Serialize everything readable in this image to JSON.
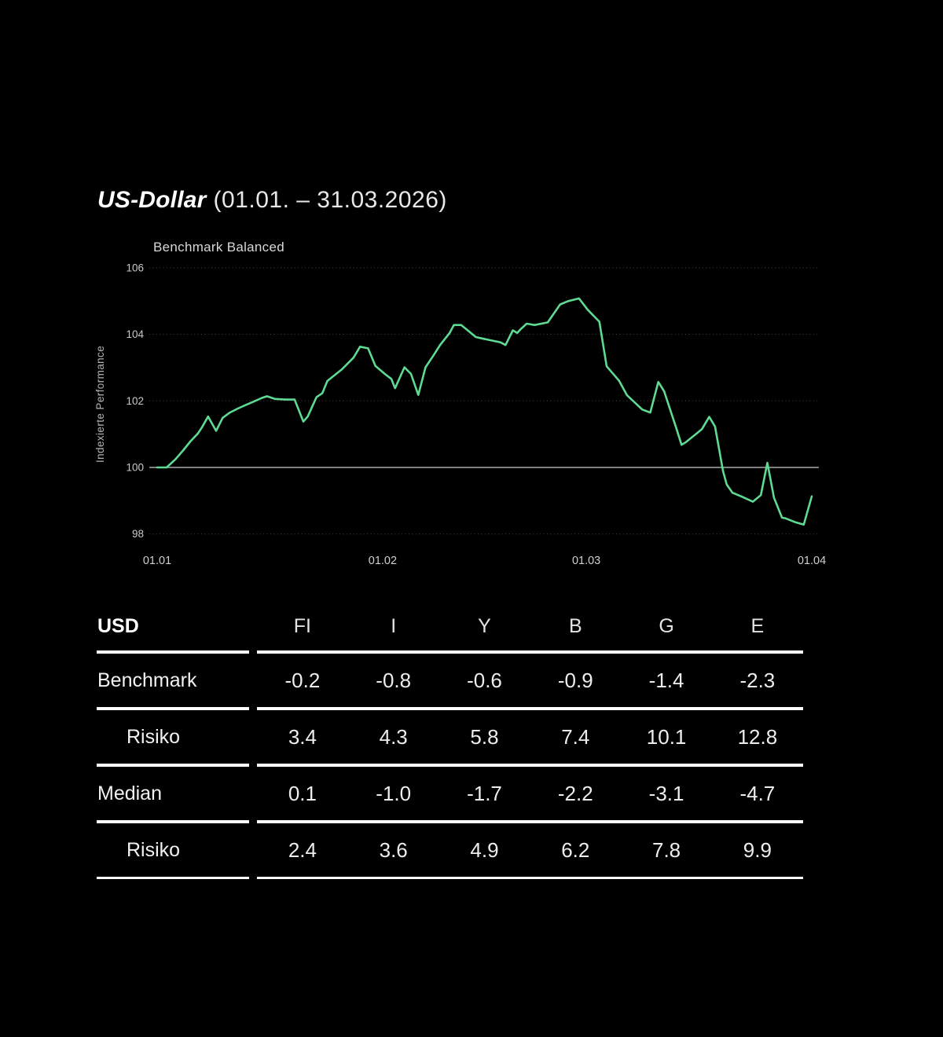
{
  "accent_color": "#5eda92",
  "background_color": "#000000",
  "header": {
    "title_main": "US-Dollar",
    "title_period": "(01.01. – 31.03.2026)"
  },
  "chart": {
    "legend": "Benchmark Balanced",
    "ylabel": "Indexierte Performance"
  },
  "chart_data": {
    "type": "line",
    "title": "US-Dollar (01.01. – 31.03.2026)",
    "series_name": "Benchmark Balanced",
    "xlabel": "",
    "ylabel": "Indexierte Performance",
    "x_unit": "days since 01.01",
    "x_ticks": [
      {
        "day": 0,
        "label": "01.01"
      },
      {
        "day": 31,
        "label": "01.02"
      },
      {
        "day": 59,
        "label": "01.03"
      },
      {
        "day": 90,
        "label": "01.04"
      }
    ],
    "y_ticks": [
      98,
      100,
      102,
      104,
      106
    ],
    "ylim": [
      97.5,
      106.3
    ],
    "baseline": 100,
    "grid": "dotted horizontal, solid line at 100",
    "legend_position": "top-left",
    "line_color": "#5eda92",
    "points": [
      [
        0.0,
        100.0
      ],
      [
        1.3,
        100.0
      ],
      [
        2.5,
        100.24
      ],
      [
        3.6,
        100.52
      ],
      [
        4.6,
        100.79
      ],
      [
        5.6,
        101.02
      ],
      [
        6.2,
        101.22
      ],
      [
        7.0,
        101.53
      ],
      [
        8.1,
        101.1
      ],
      [
        9.0,
        101.49
      ],
      [
        10.0,
        101.65
      ],
      [
        11.1,
        101.77
      ],
      [
        12.2,
        101.88
      ],
      [
        13.3,
        101.98
      ],
      [
        14.4,
        102.09
      ],
      [
        15.1,
        102.14
      ],
      [
        16.2,
        102.06
      ],
      [
        17.6,
        102.04
      ],
      [
        18.9,
        102.04
      ],
      [
        20.1,
        101.38
      ],
      [
        20.7,
        101.53
      ],
      [
        21.9,
        102.11
      ],
      [
        22.7,
        102.23
      ],
      [
        23.4,
        102.6
      ],
      [
        25.4,
        102.95
      ],
      [
        27.0,
        103.3
      ],
      [
        27.9,
        103.63
      ],
      [
        29.0,
        103.58
      ],
      [
        30.0,
        103.05
      ],
      [
        31.3,
        102.81
      ],
      [
        32.2,
        102.66
      ],
      [
        32.7,
        102.38
      ],
      [
        34.0,
        103.01
      ],
      [
        34.9,
        102.81
      ],
      [
        35.9,
        102.18
      ],
      [
        36.9,
        103.01
      ],
      [
        38.0,
        103.37
      ],
      [
        38.9,
        103.68
      ],
      [
        40.2,
        104.04
      ],
      [
        40.8,
        104.28
      ],
      [
        41.8,
        104.28
      ],
      [
        42.7,
        104.12
      ],
      [
        43.8,
        103.92
      ],
      [
        44.6,
        103.88
      ],
      [
        46.1,
        103.81
      ],
      [
        47.2,
        103.76
      ],
      [
        47.9,
        103.68
      ],
      [
        48.9,
        104.12
      ],
      [
        49.5,
        104.04
      ],
      [
        50.0,
        104.16
      ],
      [
        50.8,
        104.32
      ],
      [
        51.9,
        104.28
      ],
      [
        53.7,
        104.36
      ],
      [
        55.4,
        104.9
      ],
      [
        56.5,
        105.0
      ],
      [
        58.0,
        105.08
      ],
      [
        59.2,
        104.74
      ],
      [
        60.8,
        104.38
      ],
      [
        61.8,
        103.04
      ],
      [
        63.5,
        102.61
      ],
      [
        64.6,
        102.17
      ],
      [
        66.7,
        101.74
      ],
      [
        67.8,
        101.65
      ],
      [
        68.9,
        102.57
      ],
      [
        69.7,
        102.29
      ],
      [
        71.3,
        101.23
      ],
      [
        72.1,
        100.68
      ],
      [
        72.7,
        100.76
      ],
      [
        74.9,
        101.15
      ],
      [
        75.9,
        101.52
      ],
      [
        76.7,
        101.23
      ],
      [
        77.8,
        99.89
      ],
      [
        78.3,
        99.49
      ],
      [
        79.1,
        99.24
      ],
      [
        80.3,
        99.13
      ],
      [
        81.9,
        98.97
      ],
      [
        83.0,
        99.17
      ],
      [
        83.9,
        100.14
      ],
      [
        84.8,
        99.09
      ],
      [
        85.9,
        98.49
      ],
      [
        86.4,
        98.47
      ],
      [
        87.8,
        98.35
      ],
      [
        88.9,
        98.28
      ],
      [
        90.0,
        99.13
      ]
    ]
  },
  "table": {
    "corner": "USD",
    "columns": [
      "FI",
      "I",
      "Y",
      "B",
      "G",
      "E"
    ],
    "rows": [
      {
        "label": "Benchmark",
        "indent": false,
        "values": [
          "-0.2",
          "-0.8",
          "-0.6",
          "-0.9",
          "-1.4",
          "-2.3"
        ]
      },
      {
        "label": "Risiko",
        "indent": true,
        "values": [
          "3.4",
          "4.3",
          "5.8",
          "7.4",
          "10.1",
          "12.8"
        ]
      },
      {
        "label": "Median",
        "indent": false,
        "values": [
          "0.1",
          "-1.0",
          "-1.7",
          "-2.2",
          "-3.1",
          "-4.7"
        ]
      },
      {
        "label": "Risiko",
        "indent": true,
        "values": [
          "2.4",
          "3.6",
          "4.9",
          "6.2",
          "7.8",
          "9.9"
        ]
      }
    ]
  }
}
